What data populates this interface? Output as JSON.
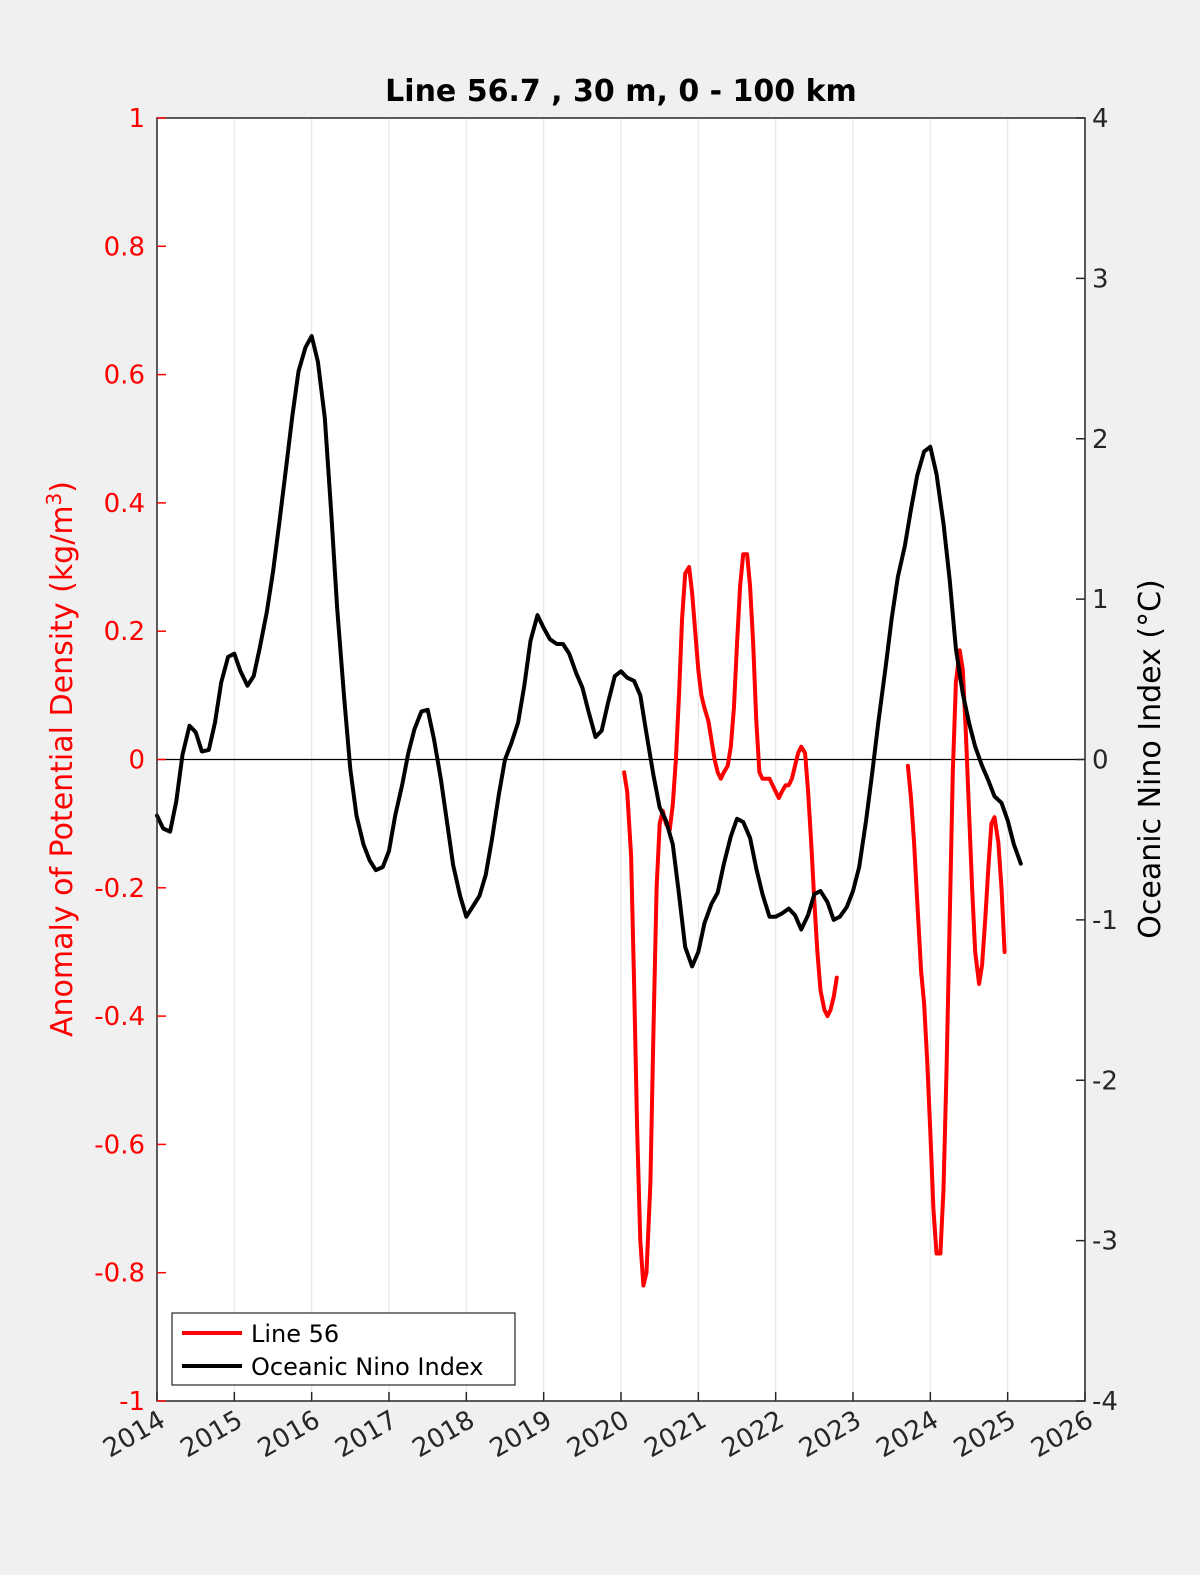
{
  "chart_data": {
    "type": "line",
    "title": "Line 56.7 , 30 m, 0 - 100 km",
    "xlabel": "",
    "ylabel_left": "Anomaly of Potential Density (kg/m",
    "ylabel_left_sup": "3",
    "ylabel_left_close": ")",
    "ylabel_right": "Oceanic Nino Index (°C)",
    "xlim": [
      2014,
      2026
    ],
    "ylim_left": [
      -1,
      1
    ],
    "ylim_right": [
      -4,
      4
    ],
    "x_ticks": [
      2014,
      2015,
      2016,
      2017,
      2018,
      2019,
      2020,
      2021,
      2022,
      2023,
      2024,
      2025,
      2026
    ],
    "x_tick_labels": [
      "2014",
      "2015",
      "2016",
      "2017",
      "2018",
      "2019",
      "2020",
      "2021",
      "2022",
      "2023",
      "2024",
      "2025",
      "2026"
    ],
    "y_left_ticks": [
      1,
      0.8,
      0.6,
      0.4,
      0.2,
      0,
      -0.2,
      -0.4,
      -0.6,
      -0.8,
      -1
    ],
    "y_left_tick_labels": [
      "1",
      "0.8",
      "0.6",
      "0.4",
      "0.2",
      "0",
      "-0.2",
      "-0.4",
      "-0.6",
      "-0.8",
      "-1"
    ],
    "y_right_ticks": [
      4,
      3,
      2,
      1,
      0,
      -1,
      -2,
      -3,
      -4
    ],
    "y_right_tick_labels": [
      "4",
      "3",
      "2",
      "1",
      "0",
      "-1",
      "-2",
      "-3",
      "-4"
    ],
    "grid": "vertical",
    "zero_line": true,
    "legend_position": "bottom-left",
    "series": [
      {
        "name": "Line 56",
        "color": "#ff0000",
        "axis": "left",
        "segments": [
          [
            [
              2020.04,
              -0.02
            ],
            [
              2020.08,
              -0.05
            ],
            [
              2020.13,
              -0.15
            ],
            [
              2020.17,
              -0.35
            ],
            [
              2020.21,
              -0.58
            ],
            [
              2020.25,
              -0.75
            ],
            [
              2020.29,
              -0.82
            ],
            [
              2020.33,
              -0.8
            ],
            [
              2020.38,
              -0.66
            ],
            [
              2020.42,
              -0.42
            ],
            [
              2020.46,
              -0.2
            ],
            [
              2020.5,
              -0.1
            ],
            [
              2020.54,
              -0.08
            ],
            [
              2020.58,
              -0.1
            ],
            [
              2020.63,
              -0.11
            ],
            [
              2020.67,
              -0.07
            ],
            [
              2020.71,
              0.0
            ],
            [
              2020.75,
              0.1
            ],
            [
              2020.79,
              0.22
            ],
            [
              2020.83,
              0.29
            ],
            [
              2020.88,
              0.3
            ],
            [
              2020.92,
              0.26
            ],
            [
              2020.96,
              0.2
            ],
            [
              2021.0,
              0.14
            ],
            [
              2021.04,
              0.1
            ],
            [
              2021.08,
              0.08
            ],
            [
              2021.13,
              0.06
            ],
            [
              2021.17,
              0.03
            ],
            [
              2021.21,
              0.0
            ],
            [
              2021.25,
              -0.02
            ],
            [
              2021.29,
              -0.03
            ],
            [
              2021.33,
              -0.02
            ],
            [
              2021.38,
              -0.01
            ],
            [
              2021.42,
              0.02
            ],
            [
              2021.46,
              0.08
            ],
            [
              2021.5,
              0.18
            ],
            [
              2021.54,
              0.27
            ],
            [
              2021.58,
              0.32
            ],
            [
              2021.63,
              0.32
            ],
            [
              2021.67,
              0.27
            ],
            [
              2021.71,
              0.18
            ],
            [
              2021.75,
              0.06
            ],
            [
              2021.79,
              -0.02
            ],
            [
              2021.83,
              -0.03
            ],
            [
              2021.88,
              -0.03
            ],
            [
              2021.92,
              -0.03
            ],
            [
              2021.96,
              -0.04
            ],
            [
              2022.0,
              -0.05
            ],
            [
              2022.04,
              -0.06
            ],
            [
              2022.08,
              -0.05
            ],
            [
              2022.13,
              -0.04
            ],
            [
              2022.17,
              -0.04
            ],
            [
              2022.21,
              -0.03
            ],
            [
              2022.25,
              -0.01
            ],
            [
              2022.29,
              0.01
            ],
            [
              2022.33,
              0.02
            ],
            [
              2022.38,
              0.01
            ],
            [
              2022.42,
              -0.05
            ],
            [
              2022.46,
              -0.13
            ],
            [
              2022.5,
              -0.22
            ],
            [
              2022.54,
              -0.3
            ],
            [
              2022.58,
              -0.36
            ],
            [
              2022.63,
              -0.39
            ],
            [
              2022.67,
              -0.4
            ],
            [
              2022.71,
              -0.39
            ],
            [
              2022.75,
              -0.37
            ],
            [
              2022.79,
              -0.34
            ]
          ],
          [
            [
              2023.71,
              -0.01
            ],
            [
              2023.75,
              -0.06
            ],
            [
              2023.79,
              -0.13
            ],
            [
              2023.83,
              -0.22
            ],
            [
              2023.88,
              -0.33
            ],
            [
              2023.92,
              -0.38
            ],
            [
              2023.96,
              -0.47
            ],
            [
              2024.0,
              -0.58
            ],
            [
              2024.04,
              -0.7
            ],
            [
              2024.08,
              -0.77
            ],
            [
              2024.13,
              -0.77
            ],
            [
              2024.17,
              -0.67
            ],
            [
              2024.21,
              -0.48
            ],
            [
              2024.25,
              -0.25
            ],
            [
              2024.29,
              -0.02
            ],
            [
              2024.33,
              0.12
            ],
            [
              2024.38,
              0.17
            ],
            [
              2024.42,
              0.14
            ],
            [
              2024.46,
              0.04
            ],
            [
              2024.5,
              -0.08
            ],
            [
              2024.54,
              -0.2
            ],
            [
              2024.58,
              -0.3
            ],
            [
              2024.63,
              -0.35
            ],
            [
              2024.67,
              -0.32
            ],
            [
              2024.71,
              -0.25
            ],
            [
              2024.75,
              -0.17
            ],
            [
              2024.79,
              -0.1
            ],
            [
              2024.83,
              -0.09
            ],
            [
              2024.88,
              -0.13
            ],
            [
              2024.92,
              -0.2
            ],
            [
              2024.96,
              -0.3
            ]
          ]
        ]
      },
      {
        "name": "Oceanic Nino Index",
        "color": "#000000",
        "axis": "right",
        "segments": [
          [
            [
              2014.0,
              -0.35
            ],
            [
              2014.08,
              -0.43
            ],
            [
              2014.17,
              -0.45
            ],
            [
              2014.25,
              -0.26
            ],
            [
              2014.33,
              0.03
            ],
            [
              2014.42,
              0.21
            ],
            [
              2014.5,
              0.17
            ],
            [
              2014.58,
              0.05
            ],
            [
              2014.67,
              0.06
            ],
            [
              2014.75,
              0.23
            ],
            [
              2014.83,
              0.48
            ],
            [
              2014.92,
              0.64
            ],
            [
              2015.0,
              0.66
            ],
            [
              2015.08,
              0.55
            ],
            [
              2015.17,
              0.46
            ],
            [
              2015.25,
              0.52
            ],
            [
              2015.33,
              0.7
            ],
            [
              2015.42,
              0.92
            ],
            [
              2015.5,
              1.17
            ],
            [
              2015.58,
              1.47
            ],
            [
              2015.67,
              1.82
            ],
            [
              2015.75,
              2.14
            ],
            [
              2015.83,
              2.42
            ],
            [
              2015.92,
              2.57
            ],
            [
              2016.0,
              2.64
            ],
            [
              2016.08,
              2.48
            ],
            [
              2016.17,
              2.13
            ],
            [
              2016.25,
              1.56
            ],
            [
              2016.33,
              0.94
            ],
            [
              2016.42,
              0.39
            ],
            [
              2016.5,
              -0.06
            ],
            [
              2016.58,
              -0.35
            ],
            [
              2016.67,
              -0.53
            ],
            [
              2016.75,
              -0.63
            ],
            [
              2016.83,
              -0.69
            ],
            [
              2016.92,
              -0.67
            ],
            [
              2017.0,
              -0.57
            ],
            [
              2017.08,
              -0.35
            ],
            [
              2017.17,
              -0.16
            ],
            [
              2017.25,
              0.04
            ],
            [
              2017.33,
              0.19
            ],
            [
              2017.42,
              0.3
            ],
            [
              2017.5,
              0.31
            ],
            [
              2017.58,
              0.13
            ],
            [
              2017.67,
              -0.12
            ],
            [
              2017.75,
              -0.39
            ],
            [
              2017.83,
              -0.66
            ],
            [
              2017.92,
              -0.85
            ],
            [
              2018.0,
              -0.98
            ],
            [
              2018.08,
              -0.92
            ],
            [
              2018.17,
              -0.85
            ],
            [
              2018.25,
              -0.72
            ],
            [
              2018.33,
              -0.5
            ],
            [
              2018.42,
              -0.22
            ],
            [
              2018.5,
              0.0
            ],
            [
              2018.58,
              0.1
            ],
            [
              2018.67,
              0.23
            ],
            [
              2018.75,
              0.46
            ],
            [
              2018.83,
              0.74
            ],
            [
              2018.92,
              0.9
            ],
            [
              2019.0,
              0.82
            ],
            [
              2019.08,
              0.75
            ],
            [
              2019.17,
              0.72
            ],
            [
              2019.25,
              0.72
            ],
            [
              2019.33,
              0.66
            ],
            [
              2019.42,
              0.54
            ],
            [
              2019.5,
              0.45
            ],
            [
              2019.58,
              0.3
            ],
            [
              2019.67,
              0.14
            ],
            [
              2019.75,
              0.18
            ],
            [
              2019.83,
              0.35
            ],
            [
              2019.92,
              0.52
            ],
            [
              2020.0,
              0.55
            ],
            [
              2020.08,
              0.51
            ],
            [
              2020.17,
              0.49
            ],
            [
              2020.25,
              0.4
            ],
            [
              2020.33,
              0.16
            ],
            [
              2020.42,
              -0.1
            ],
            [
              2020.5,
              -0.3
            ],
            [
              2020.58,
              -0.38
            ],
            [
              2020.67,
              -0.53
            ],
            [
              2020.75,
              -0.84
            ],
            [
              2020.83,
              -1.17
            ],
            [
              2020.92,
              -1.29
            ],
            [
              2021.0,
              -1.2
            ],
            [
              2021.08,
              -1.02
            ],
            [
              2021.17,
              -0.9
            ],
            [
              2021.25,
              -0.83
            ],
            [
              2021.33,
              -0.65
            ],
            [
              2021.42,
              -0.48
            ],
            [
              2021.5,
              -0.37
            ],
            [
              2021.58,
              -0.39
            ],
            [
              2021.67,
              -0.49
            ],
            [
              2021.75,
              -0.68
            ],
            [
              2021.83,
              -0.84
            ],
            [
              2021.92,
              -0.98
            ],
            [
              2022.0,
              -0.98
            ],
            [
              2022.08,
              -0.96
            ],
            [
              2022.17,
              -0.93
            ],
            [
              2022.25,
              -0.97
            ],
            [
              2022.33,
              -1.06
            ],
            [
              2022.42,
              -0.97
            ],
            [
              2022.5,
              -0.84
            ],
            [
              2022.58,
              -0.82
            ],
            [
              2022.67,
              -0.89
            ],
            [
              2022.75,
              -1.0
            ],
            [
              2022.83,
              -0.98
            ],
            [
              2022.92,
              -0.92
            ],
            [
              2023.0,
              -0.82
            ],
            [
              2023.08,
              -0.67
            ],
            [
              2023.17,
              -0.38
            ],
            [
              2023.25,
              -0.08
            ],
            [
              2023.33,
              0.24
            ],
            [
              2023.42,
              0.57
            ],
            [
              2023.5,
              0.88
            ],
            [
              2023.58,
              1.14
            ],
            [
              2023.67,
              1.33
            ],
            [
              2023.75,
              1.56
            ],
            [
              2023.83,
              1.77
            ],
            [
              2023.92,
              1.92
            ],
            [
              2024.0,
              1.95
            ],
            [
              2024.08,
              1.78
            ],
            [
              2024.17,
              1.47
            ],
            [
              2024.25,
              1.12
            ],
            [
              2024.33,
              0.69
            ],
            [
              2024.42,
              0.41
            ],
            [
              2024.5,
              0.23
            ],
            [
              2024.58,
              0.08
            ],
            [
              2024.67,
              -0.04
            ],
            [
              2024.75,
              -0.13
            ],
            [
              2024.83,
              -0.23
            ],
            [
              2024.92,
              -0.27
            ],
            [
              2025.0,
              -0.38
            ],
            [
              2025.08,
              -0.53
            ],
            [
              2025.17,
              -0.65
            ]
          ]
        ]
      }
    ]
  }
}
